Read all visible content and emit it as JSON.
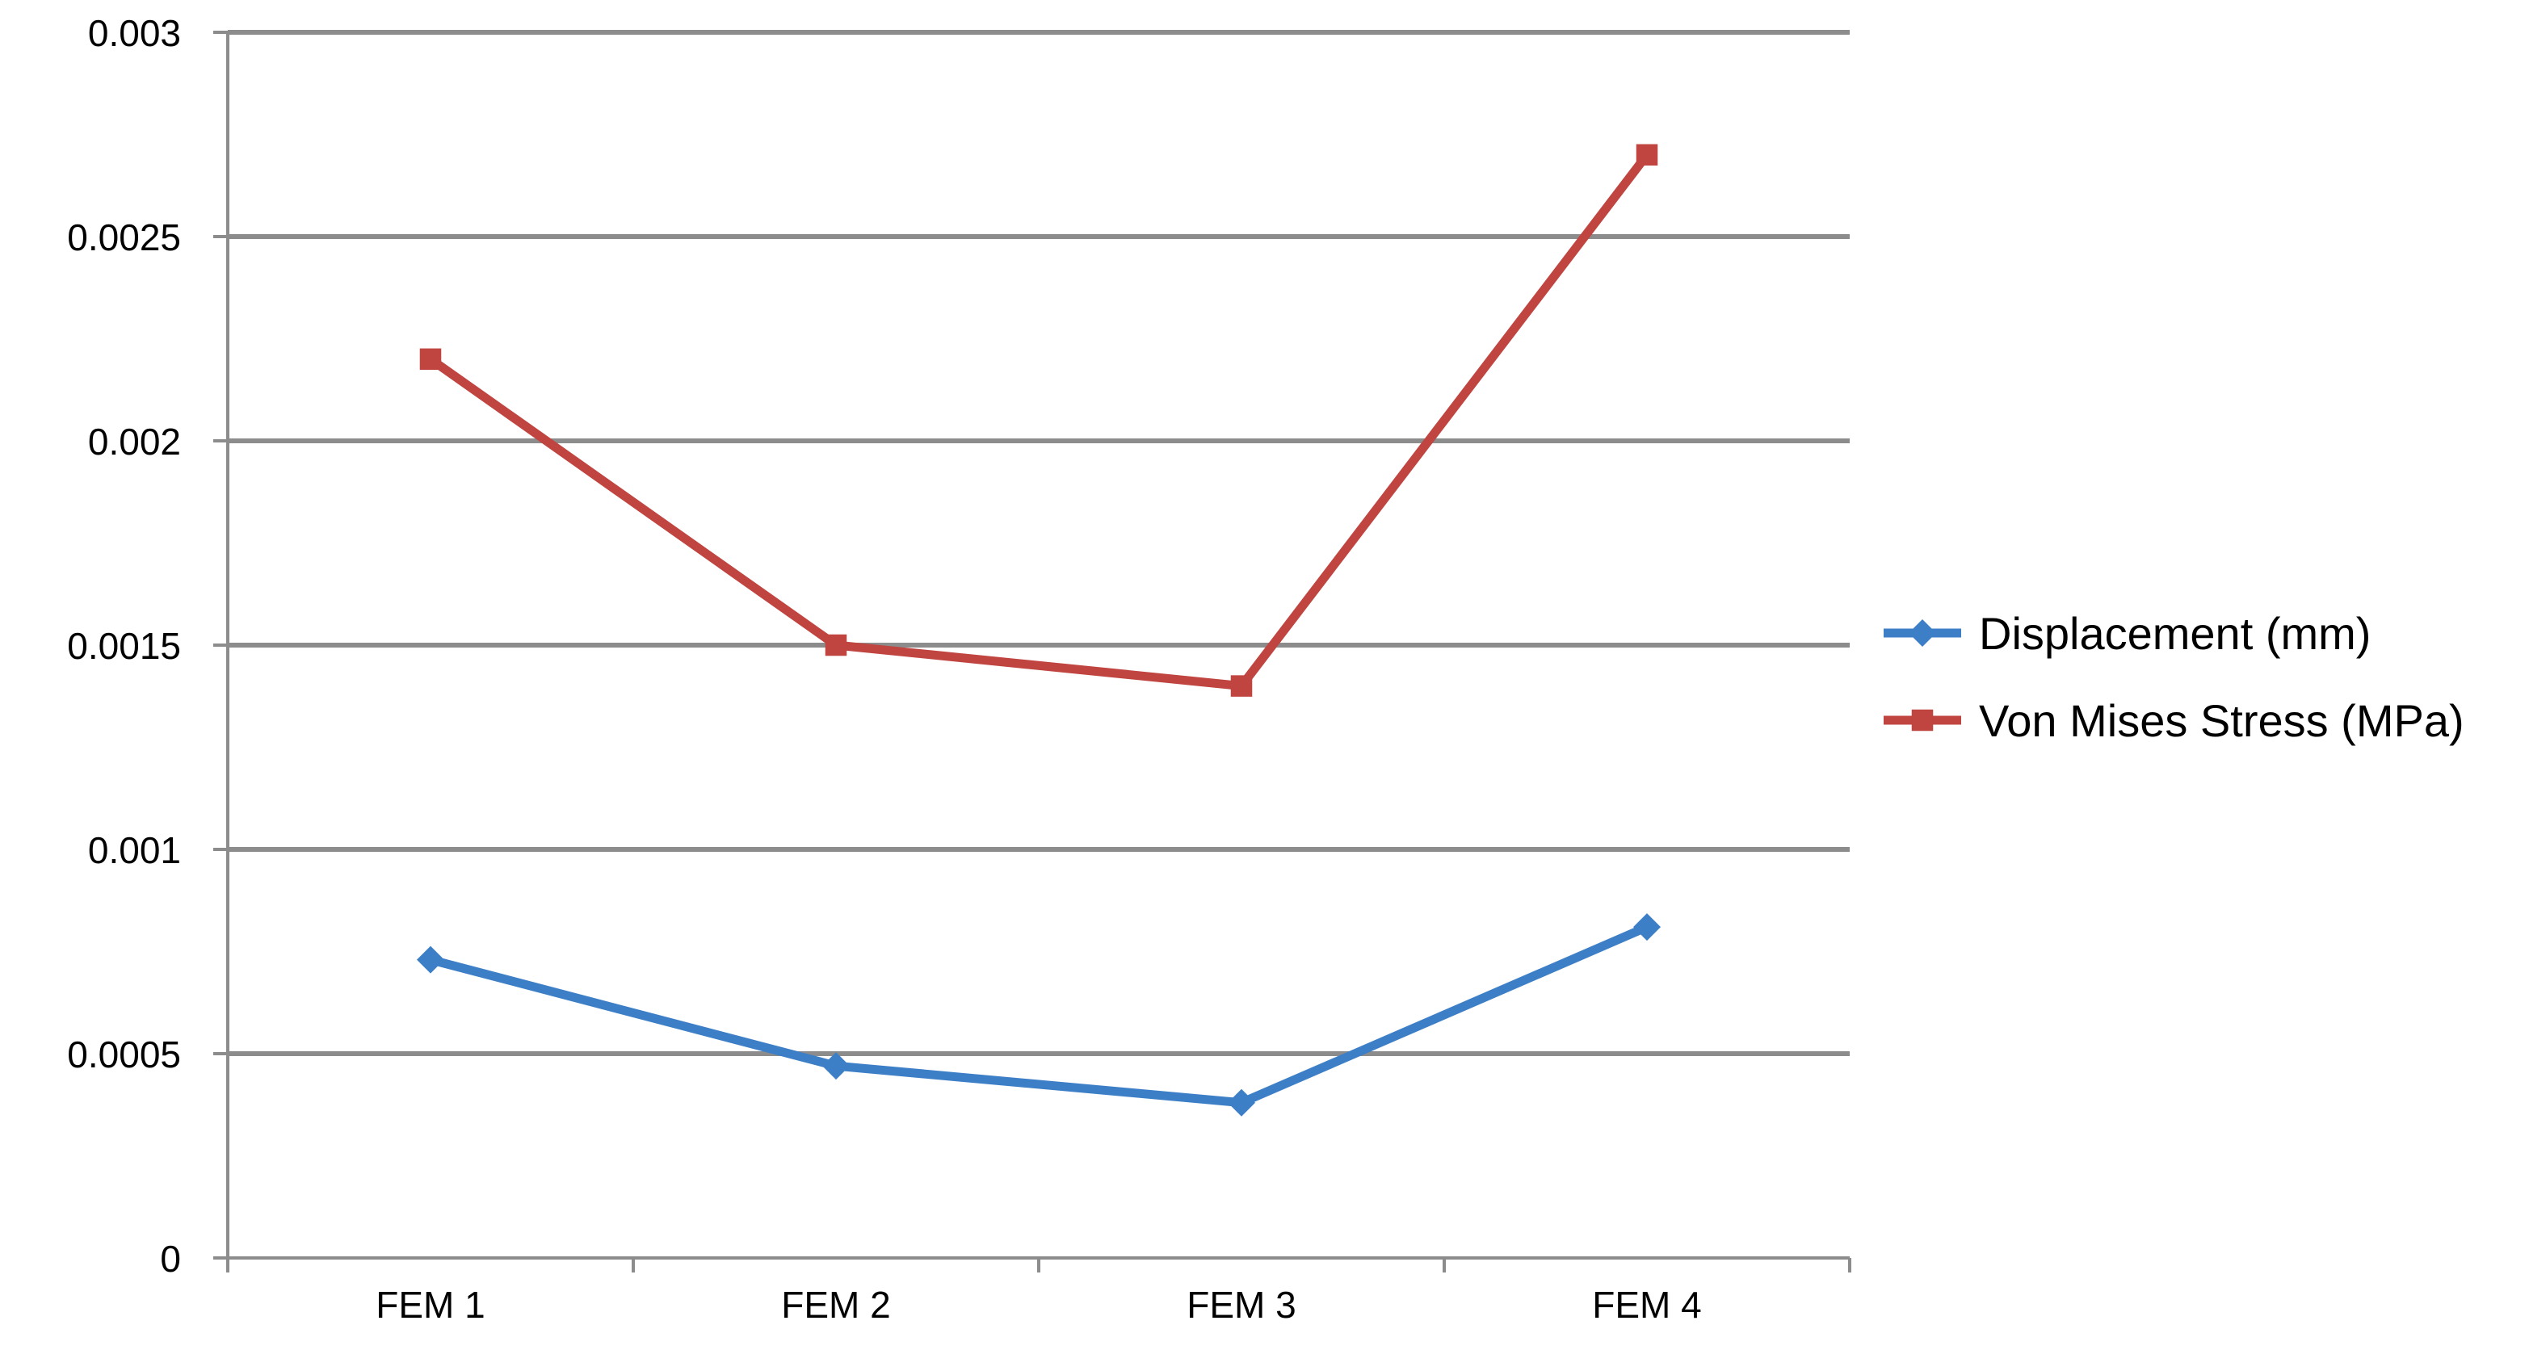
{
  "chart_data": {
    "type": "line",
    "title": "",
    "xlabel": "",
    "ylabel": "",
    "categories": [
      "FEM 1",
      "FEM 2",
      "FEM 3",
      "FEM 4"
    ],
    "ylim": [
      0,
      0.003
    ],
    "yticks": [
      "0",
      "0.0005",
      "0.001",
      "0.0015",
      "0.002",
      "0.0025",
      "0.003"
    ],
    "grid": true,
    "legend_position": "right",
    "series": [
      {
        "name": "Displacement (mm)",
        "values": [
          0.00073,
          0.00047,
          0.00038,
          0.00081
        ],
        "color": "#3d7fc7",
        "marker": "diamond"
      },
      {
        "name": "Von Mises Stress (MPa)",
        "values": [
          0.0022,
          0.0015,
          0.0014,
          0.0027
        ],
        "color": "#c0443f",
        "marker": "square"
      }
    ]
  }
}
